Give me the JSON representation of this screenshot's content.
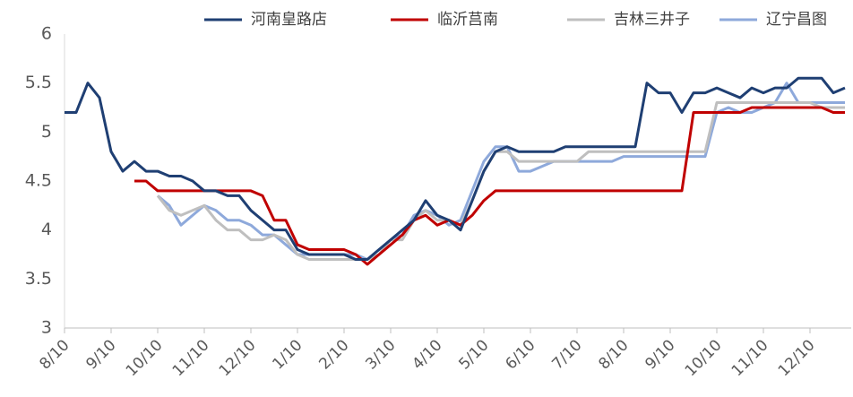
{
  "chart_data": {
    "type": "line",
    "categories": [
      "8/10",
      null,
      null,
      null,
      "9/10",
      null,
      null,
      null,
      "10/10",
      null,
      null,
      null,
      "11/10",
      null,
      null,
      null,
      "12/10",
      null,
      null,
      null,
      "1/10",
      null,
      null,
      null,
      "2/10",
      null,
      null,
      null,
      "3/10",
      null,
      null,
      null,
      "4/10",
      null,
      null,
      null,
      "5/10",
      null,
      null,
      null,
      "6/10",
      null,
      null,
      null,
      "7/10",
      null,
      null,
      null,
      "8/10",
      null,
      null,
      null,
      "9/10",
      null,
      null,
      null,
      "10/10",
      null,
      null,
      null,
      "11/10",
      null,
      null,
      null,
      "12/10",
      null,
      null,
      null
    ],
    "series": [
      {
        "name": "河南皇路店",
        "color": "#1f3f73",
        "values": [
          5.2,
          5.2,
          5.5,
          5.35,
          4.8,
          4.6,
          4.7,
          4.6,
          4.6,
          4.55,
          4.55,
          4.5,
          4.4,
          4.4,
          4.35,
          4.35,
          4.2,
          4.1,
          4.0,
          4.0,
          3.8,
          3.75,
          3.75,
          3.75,
          3.75,
          3.7,
          3.7,
          3.8,
          3.9,
          4.0,
          4.1,
          4.3,
          4.15,
          4.1,
          4.0,
          4.3,
          4.6,
          4.8,
          4.85,
          4.8,
          4.8,
          4.8,
          4.8,
          4.85,
          4.85,
          4.85,
          4.85,
          4.85,
          4.85,
          4.85,
          5.5,
          5.4,
          5.4,
          5.2,
          5.4,
          5.4,
          5.45,
          5.4,
          5.35,
          5.45,
          5.4,
          5.45,
          5.45,
          5.55,
          5.55,
          5.55,
          5.4,
          5.45
        ]
      },
      {
        "name": "临沂莒南",
        "color": "#c00000",
        "values": [
          null,
          null,
          null,
          null,
          null,
          null,
          4.5,
          4.5,
          4.4,
          4.4,
          4.4,
          4.4,
          4.4,
          4.4,
          4.4,
          4.4,
          4.4,
          4.35,
          4.1,
          4.1,
          3.85,
          3.8,
          3.8,
          3.8,
          3.8,
          3.75,
          3.65,
          3.75,
          3.85,
          3.95,
          4.1,
          4.15,
          4.05,
          4.1,
          4.05,
          4.15,
          4.3,
          4.4,
          4.4,
          4.4,
          4.4,
          4.4,
          4.4,
          4.4,
          4.4,
          4.4,
          4.4,
          4.4,
          4.4,
          4.4,
          4.4,
          4.4,
          4.4,
          4.4,
          5.2,
          5.2,
          5.2,
          5.2,
          5.2,
          5.25,
          5.25,
          5.25,
          5.25,
          5.25,
          5.25,
          5.25,
          5.2,
          5.2
        ]
      },
      {
        "name": "吉林三井子",
        "color": "#bfbfbf",
        "values": [
          null,
          null,
          null,
          null,
          null,
          null,
          null,
          null,
          4.35,
          4.2,
          4.15,
          4.2,
          4.25,
          4.1,
          4.0,
          4.0,
          3.9,
          3.9,
          3.95,
          3.9,
          3.75,
          3.7,
          3.7,
          3.7,
          3.7,
          3.7,
          3.7,
          3.75,
          3.9,
          3.9,
          4.1,
          4.2,
          4.1,
          4.1,
          4.05,
          4.3,
          4.6,
          4.8,
          4.8,
          4.7,
          4.7,
          4.7,
          4.7,
          4.7,
          4.7,
          4.8,
          4.8,
          4.8,
          4.8,
          4.8,
          4.8,
          4.8,
          4.8,
          4.8,
          4.8,
          4.8,
          5.3,
          5.3,
          5.3,
          5.3,
          5.3,
          5.3,
          5.3,
          5.3,
          5.3,
          5.25,
          5.25,
          5.25
        ]
      },
      {
        "name": "辽宁昌图",
        "color": "#8ea9db",
        "values": [
          null,
          null,
          null,
          null,
          null,
          null,
          null,
          null,
          4.35,
          4.25,
          4.05,
          4.15,
          4.25,
          4.2,
          4.1,
          4.1,
          4.05,
          3.95,
          3.95,
          3.85,
          3.75,
          3.75,
          3.75,
          3.75,
          3.75,
          3.75,
          3.7,
          3.8,
          3.9,
          3.95,
          4.15,
          4.2,
          4.15,
          4.05,
          4.1,
          4.4,
          4.7,
          4.85,
          4.85,
          4.6,
          4.6,
          4.65,
          4.7,
          4.7,
          4.7,
          4.7,
          4.7,
          4.7,
          4.75,
          4.75,
          4.75,
          4.75,
          4.75,
          4.75,
          4.75,
          4.75,
          5.2,
          5.25,
          5.2,
          5.2,
          5.25,
          5.3,
          5.5,
          5.3,
          5.3,
          5.3,
          5.3,
          5.3
        ]
      }
    ],
    "ylim": [
      3,
      6
    ],
    "yticks": [
      3,
      3.5,
      4,
      4.5,
      5,
      5.5,
      6
    ],
    "grid": false,
    "legend": "top"
  }
}
